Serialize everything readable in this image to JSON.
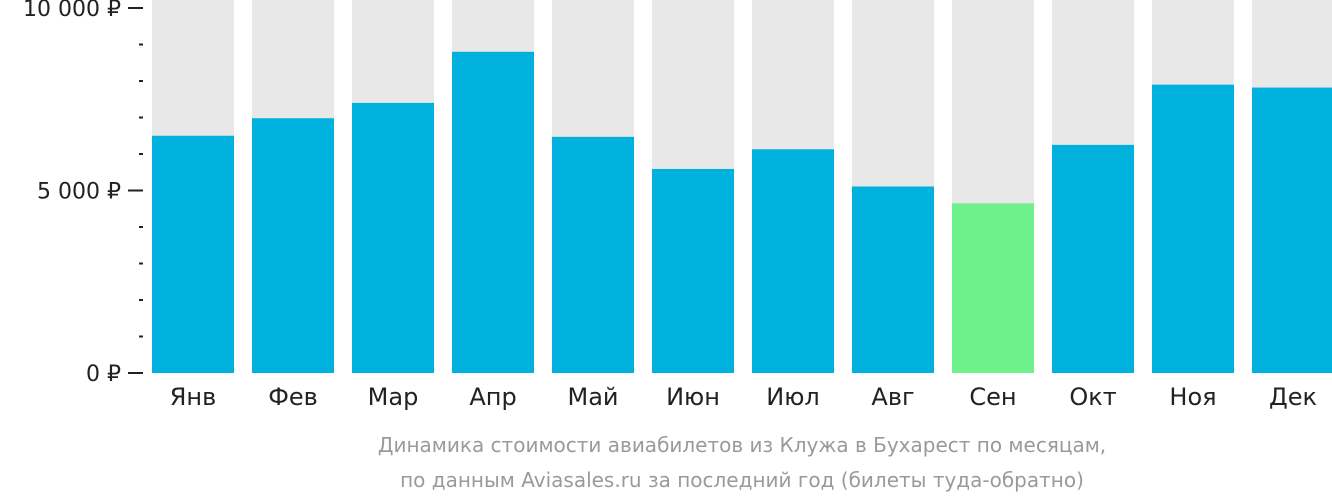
{
  "chart_data": {
    "type": "bar",
    "categories": [
      "Янв",
      "Фев",
      "Мар",
      "Апр",
      "Май",
      "Июн",
      "Июл",
      "Авг",
      "Сен",
      "Окт",
      "Ноя",
      "Дек"
    ],
    "values": [
      6500,
      6980,
      7400,
      8800,
      6470,
      5590,
      6130,
      5110,
      4650,
      6250,
      7900,
      7820
    ],
    "ylim": [
      0,
      10000
    ],
    "yticks": [
      0,
      5000,
      10000
    ],
    "ytick_labels": [
      "0 ₽",
      "5 000 ₽",
      "10 000 ₽"
    ],
    "minor_ticks_per_major": 5,
    "grid": false,
    "legend": "none",
    "highlight_index": 8,
    "colors": {
      "bar": "#00b0dd",
      "highlight": "#6ef08a",
      "background_column": "#e8e8e8",
      "axis": "#222222",
      "caption": "#9a9a9a"
    }
  },
  "caption": {
    "line1": "Динамика стоимости авиабилетов из Клужа в Бухарест по месяцам,",
    "line2": "по данным Aviasales.ru за последний год (билеты туда-обратно)"
  }
}
